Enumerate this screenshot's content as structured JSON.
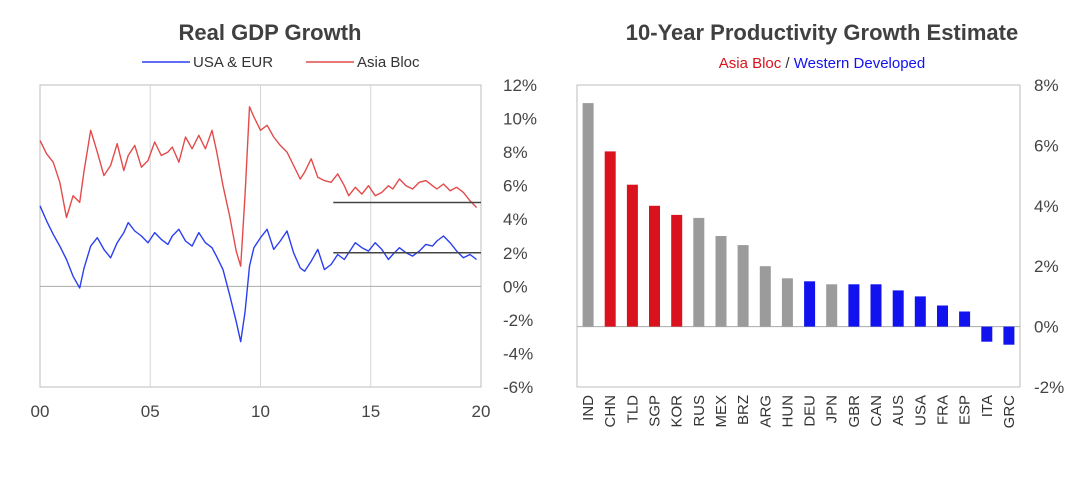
{
  "colors": {
    "blue": "#2b3ff0",
    "red": "#e34b4b",
    "red_bar": "#d9121e",
    "gray_bar": "#9b9b9b",
    "blue_bar": "#1212ee",
    "ref_line": "#444444"
  },
  "chart_data": [
    {
      "type": "line",
      "title": "Real GDP Growth",
      "legend": [
        "USA & EUR",
        "Asia Bloc"
      ],
      "xlim": [
        2000,
        2020
      ],
      "ylim": [
        -6,
        12
      ],
      "x_tick_labels": [
        "00",
        "05",
        "10",
        "15",
        "20"
      ],
      "x_tick_values": [
        2000,
        2005,
        2010,
        2015,
        2020
      ],
      "y_tick_values": [
        12,
        10,
        8,
        6,
        4,
        2,
        0,
        -2,
        -4,
        -6
      ],
      "y_tick_labels": [
        "12%",
        "10%",
        "8%",
        "6%",
        "4%",
        "2%",
        "0%",
        "-2%",
        "-4%",
        "-6%"
      ],
      "series": [
        {
          "name": "USA & EUR",
          "color": "#2b3ff0",
          "x": [
            2000.0,
            2000.3,
            2000.6,
            2000.9,
            2001.2,
            2001.5,
            2001.8,
            2002.0,
            2002.3,
            2002.6,
            2002.9,
            2003.2,
            2003.5,
            2003.8,
            2004.0,
            2004.3,
            2004.6,
            2004.9,
            2005.2,
            2005.5,
            2005.8,
            2006.0,
            2006.3,
            2006.6,
            2006.9,
            2007.2,
            2007.5,
            2007.8,
            2008.0,
            2008.3,
            2008.6,
            2008.9,
            2009.1,
            2009.3,
            2009.5,
            2009.7,
            2010.0,
            2010.3,
            2010.6,
            2010.9,
            2011.2,
            2011.5,
            2011.8,
            2012.0,
            2012.3,
            2012.6,
            2012.9,
            2013.2,
            2013.5,
            2013.8,
            2014.0,
            2014.3,
            2014.6,
            2014.9,
            2015.2,
            2015.5,
            2015.8,
            2016.0,
            2016.3,
            2016.6,
            2016.9,
            2017.2,
            2017.5,
            2017.8,
            2018.0,
            2018.3,
            2018.6,
            2018.9,
            2019.2,
            2019.5,
            2019.8
          ],
          "values": [
            4.8,
            3.9,
            3.1,
            2.4,
            1.6,
            0.6,
            -0.1,
            1.1,
            2.4,
            2.9,
            2.2,
            1.7,
            2.6,
            3.2,
            3.8,
            3.3,
            3.0,
            2.6,
            3.2,
            2.8,
            2.5,
            3.0,
            3.4,
            2.7,
            2.4,
            3.2,
            2.6,
            2.3,
            1.8,
            1.0,
            -0.5,
            -2.1,
            -3.3,
            -1.5,
            1.2,
            2.3,
            2.9,
            3.4,
            2.2,
            2.7,
            3.3,
            2.0,
            1.1,
            0.9,
            1.5,
            2.2,
            1.0,
            1.3,
            1.9,
            1.6,
            2.0,
            2.6,
            2.3,
            2.1,
            2.6,
            2.2,
            1.6,
            1.9,
            2.3,
            2.0,
            1.8,
            2.1,
            2.5,
            2.4,
            2.7,
            3.0,
            2.6,
            2.1,
            1.7,
            1.9,
            1.6
          ]
        },
        {
          "name": "Asia Bloc",
          "color": "#e34b4b",
          "x": [
            2000.0,
            2000.3,
            2000.6,
            2000.9,
            2001.2,
            2001.5,
            2001.8,
            2002.0,
            2002.3,
            2002.6,
            2002.9,
            2003.2,
            2003.5,
            2003.8,
            2004.0,
            2004.3,
            2004.6,
            2004.9,
            2005.2,
            2005.5,
            2005.8,
            2006.0,
            2006.3,
            2006.6,
            2006.9,
            2007.2,
            2007.5,
            2007.8,
            2008.0,
            2008.3,
            2008.6,
            2008.9,
            2009.1,
            2009.3,
            2009.5,
            2009.7,
            2010.0,
            2010.3,
            2010.6,
            2010.9,
            2011.2,
            2011.5,
            2011.8,
            2012.0,
            2012.3,
            2012.6,
            2012.9,
            2013.2,
            2013.5,
            2013.8,
            2014.0,
            2014.3,
            2014.6,
            2014.9,
            2015.2,
            2015.5,
            2015.8,
            2016.0,
            2016.3,
            2016.6,
            2016.9,
            2017.2,
            2017.5,
            2017.8,
            2018.0,
            2018.3,
            2018.6,
            2018.9,
            2019.2,
            2019.5,
            2019.8
          ],
          "values": [
            8.7,
            7.9,
            7.4,
            6.2,
            4.1,
            5.4,
            5.0,
            6.9,
            9.3,
            8.0,
            6.6,
            7.2,
            8.5,
            6.9,
            7.8,
            8.4,
            7.1,
            7.5,
            8.6,
            7.8,
            8.0,
            8.3,
            7.4,
            8.9,
            8.2,
            9.0,
            8.2,
            9.3,
            8.1,
            6.0,
            4.2,
            2.1,
            1.2,
            5.5,
            10.7,
            10.1,
            9.3,
            9.6,
            8.9,
            8.4,
            8.0,
            7.2,
            6.4,
            6.8,
            7.6,
            6.5,
            6.3,
            6.2,
            6.7,
            6.0,
            5.4,
            5.9,
            5.5,
            6.0,
            5.4,
            5.6,
            6.0,
            5.8,
            6.4,
            6.0,
            5.8,
            6.2,
            6.3,
            6.0,
            5.8,
            6.1,
            5.7,
            5.9,
            5.6,
            5.1,
            4.7
          ]
        }
      ],
      "reference_lines": [
        {
          "x0": 2013.3,
          "x1": 2020,
          "y": 5.0
        },
        {
          "x0": 2013.3,
          "x1": 2020,
          "y": 2.0
        }
      ]
    },
    {
      "type": "bar",
      "title": "10-Year Productivity Growth Estimate",
      "subtitle_parts": [
        "Asia Bloc",
        " / ",
        "Western Developed"
      ],
      "ylim": [
        -2,
        8
      ],
      "y_tick_values": [
        8,
        6,
        4,
        2,
        0,
        -2
      ],
      "y_tick_labels": [
        "8%",
        "6%",
        "4%",
        "2%",
        "0%",
        "-2%"
      ],
      "categories": [
        "IND",
        "CHN",
        "TLD",
        "SGP",
        "KOR",
        "RUS",
        "MEX",
        "BRZ",
        "ARG",
        "HUN",
        "DEU",
        "JPN",
        "GBR",
        "CAN",
        "AUS",
        "USA",
        "FRA",
        "ESP",
        "ITA",
        "GRC"
      ],
      "values": [
        7.4,
        5.8,
        4.7,
        4.0,
        3.7,
        3.6,
        3.0,
        2.7,
        2.0,
        1.6,
        1.5,
        1.4,
        1.4,
        1.4,
        1.2,
        1.0,
        0.7,
        0.5,
        -0.5,
        -0.6
      ],
      "groups": [
        "other",
        "asia",
        "asia",
        "asia",
        "asia",
        "other",
        "other",
        "other",
        "other",
        "other",
        "western",
        "other",
        "western",
        "western",
        "western",
        "western",
        "western",
        "western",
        "western",
        "western"
      ]
    }
  ]
}
